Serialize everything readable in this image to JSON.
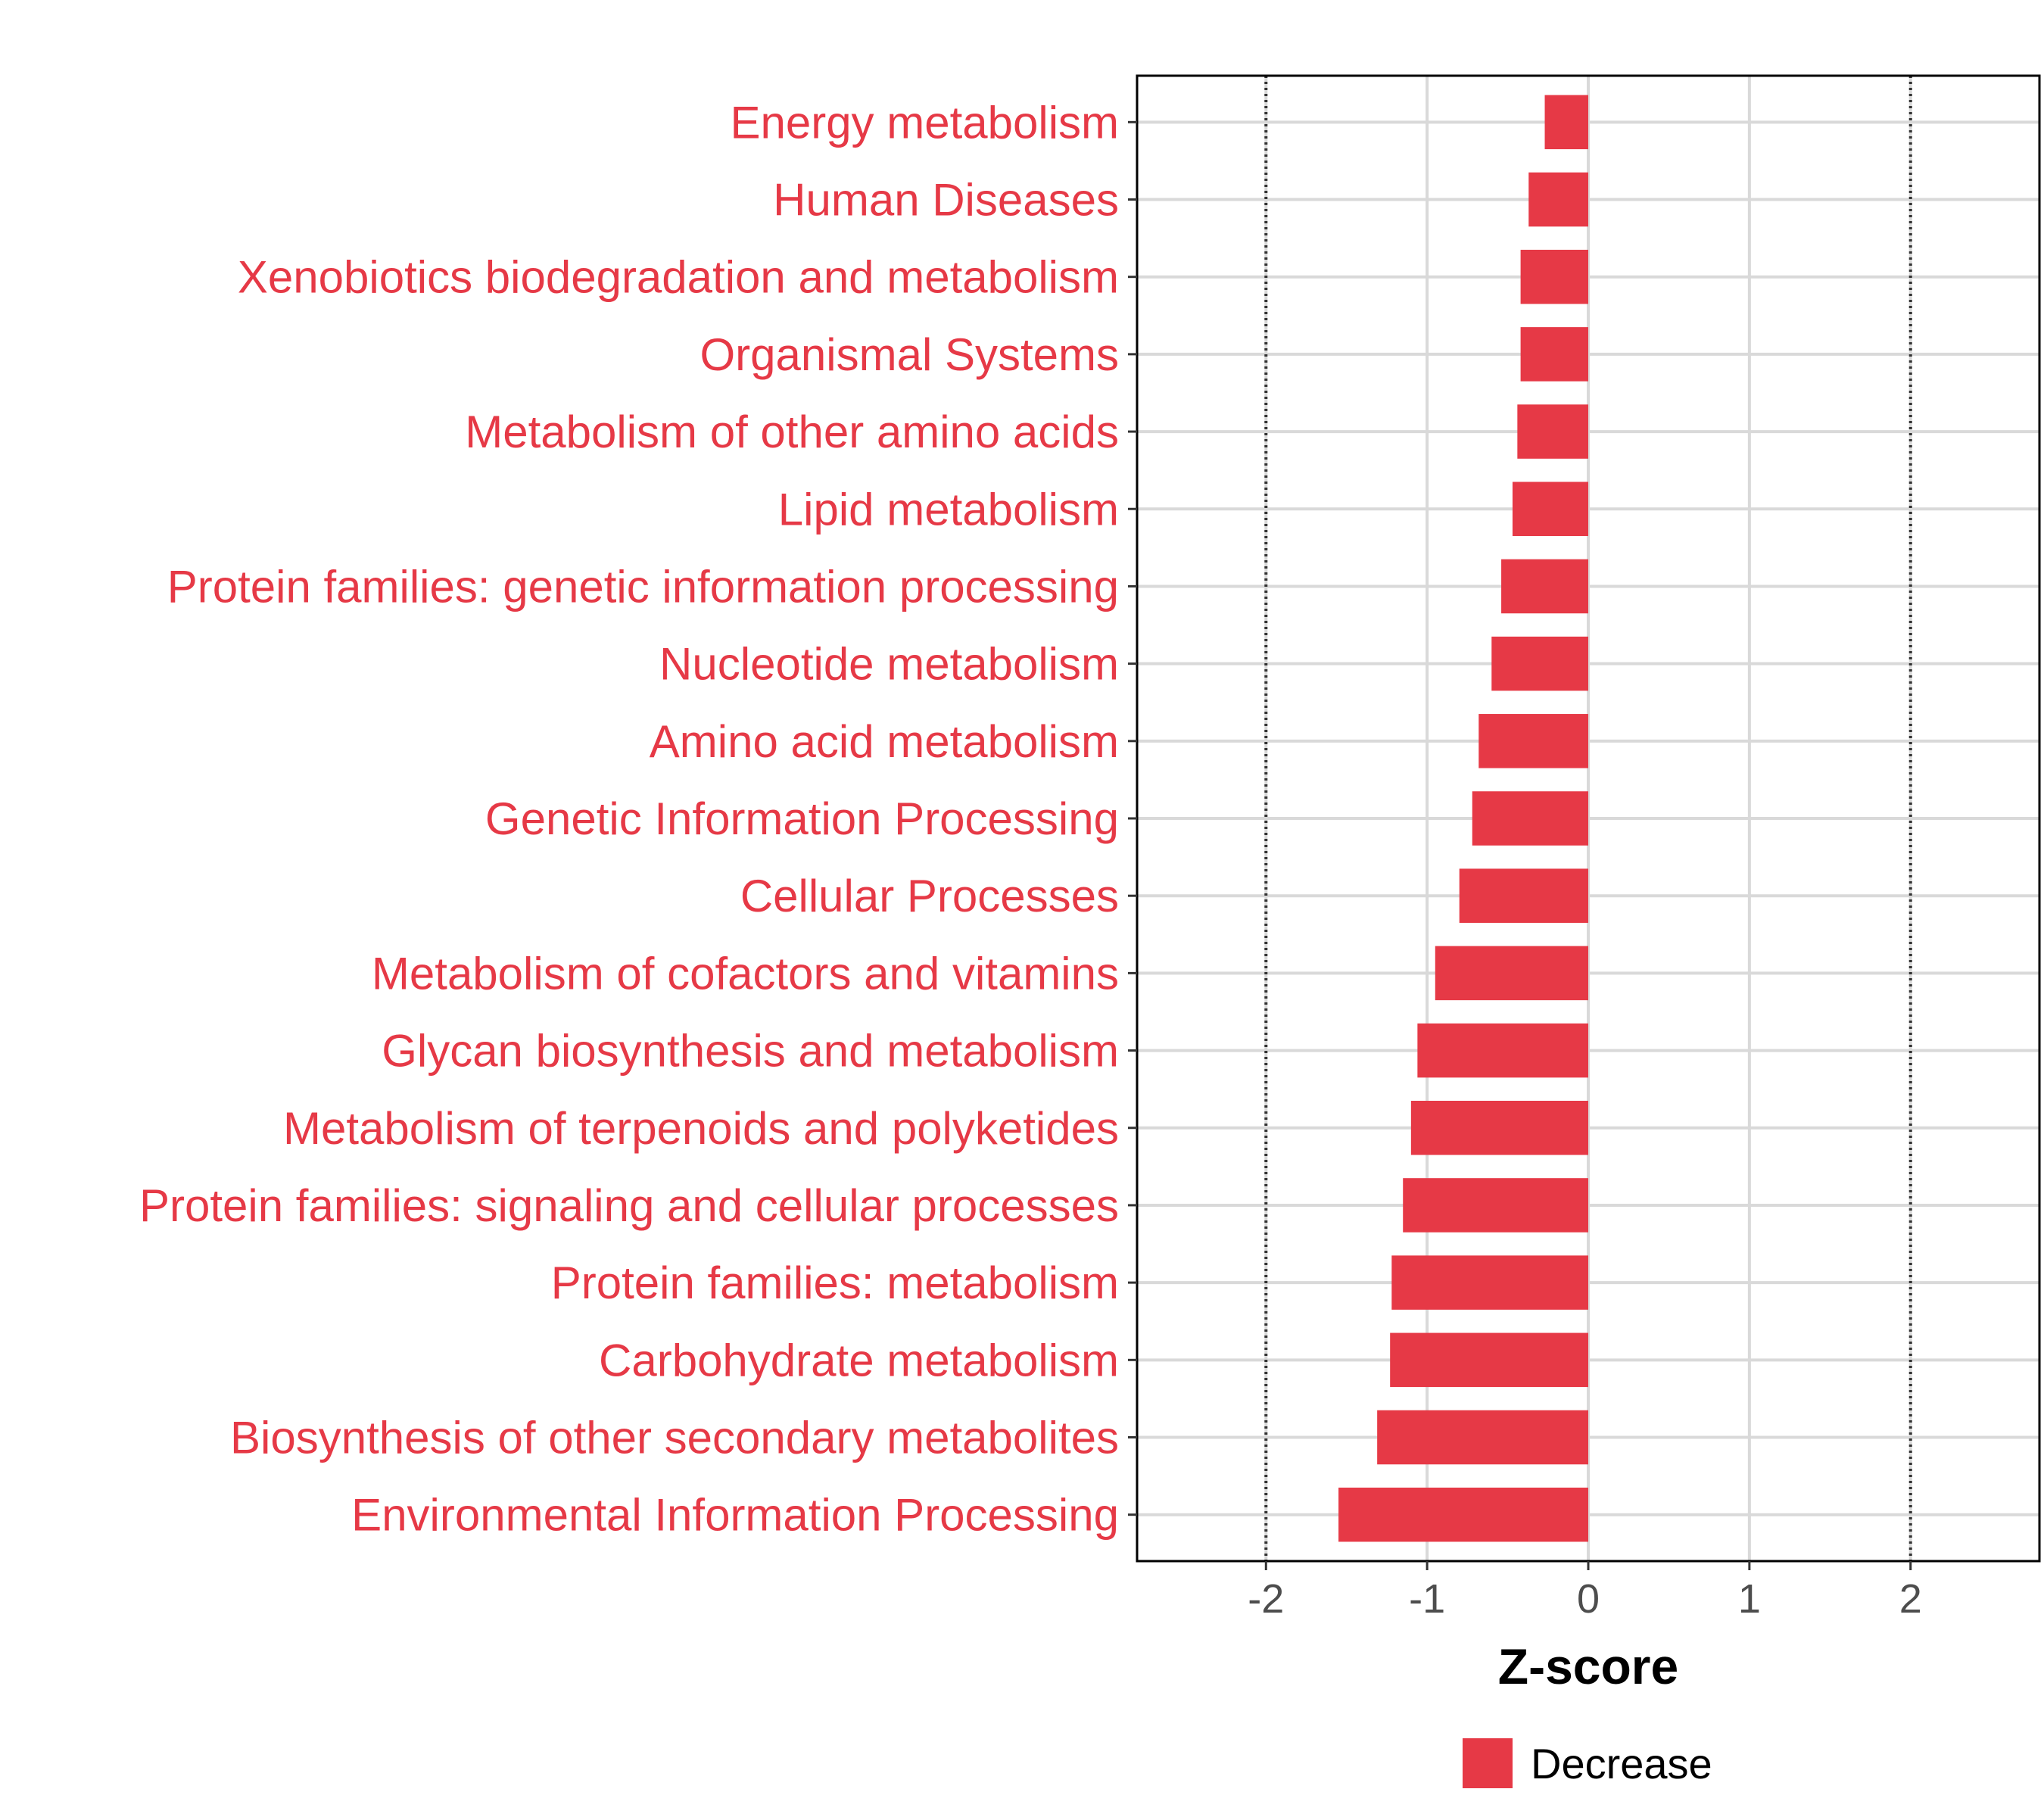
{
  "chart_data": {
    "type": "bar",
    "orientation": "horizontal",
    "categories": [
      "Energy metabolism",
      "Human Diseases",
      "Xenobiotics biodegradation and metabolism",
      "Organismal Systems",
      "Metabolism of other amino acids",
      "Lipid metabolism",
      "Protein families: genetic information processing",
      "Nucleotide metabolism",
      "Amino acid metabolism",
      "Genetic Information Processing",
      "Cellular Processes",
      "Metabolism of cofactors and vitamins",
      "Glycan biosynthesis and metabolism",
      "Metabolism of terpenoids and polyketides",
      "Protein families: signaling and cellular processes",
      "Protein families: metabolism",
      "Carbohydrate metabolism",
      "Biosynthesis of other secondary metabolites",
      "Environmental Information Processing"
    ],
    "values": [
      -0.27,
      -0.37,
      -0.42,
      -0.42,
      -0.44,
      -0.47,
      -0.54,
      -0.6,
      -0.68,
      -0.72,
      -0.8,
      -0.95,
      -1.06,
      -1.1,
      -1.15,
      -1.22,
      -1.23,
      -1.31,
      -1.55
    ],
    "xlabel": "Z-score",
    "ylabel": "",
    "xlim": [
      -2.8,
      2.8
    ],
    "xticks": [
      -2,
      -1,
      0,
      1,
      2
    ],
    "reference_lines": [
      -2,
      2
    ],
    "grid": true,
    "legend": {
      "position": "bottom",
      "items": [
        {
          "label": "Decrease",
          "color": "#E63946"
        }
      ]
    },
    "bar_color": "#E63946",
    "label_color": "#E63946"
  }
}
